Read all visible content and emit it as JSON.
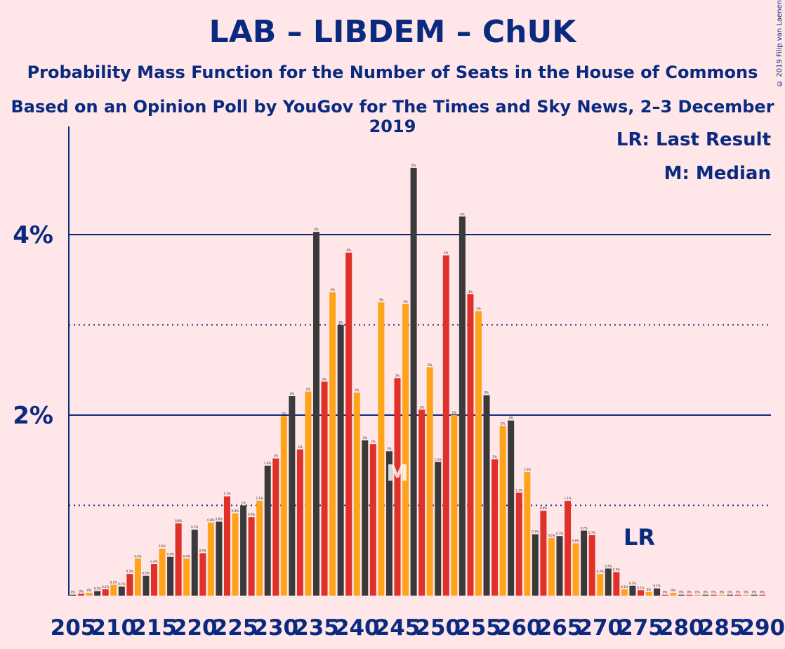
{
  "title": "LAB – LIBDEM – ChUK",
  "subtitle": "Probability Mass Function for the Number of Seats in the House of Commons",
  "source": "Based on an Opinion Poll by YouGov for The Times and Sky News, 2–3 December 2019",
  "legend": {
    "last_result": "LR: Last Result",
    "median": "M: Median"
  },
  "copyright": "© 2019 Filip van Laenen",
  "colors": {
    "background": "#FFE6E9",
    "text": "#0A2A80",
    "dark": "#3A3A3A",
    "red": "#E0302A",
    "orange": "#FFA31A"
  },
  "chart_data": {
    "type": "bar",
    "x_start": 205,
    "x_end": 290,
    "x_tick_labels": [
      "205",
      "210",
      "215",
      "220",
      "225",
      "230",
      "235",
      "240",
      "245",
      "250",
      "255",
      "260",
      "265",
      "270",
      "275",
      "280",
      "285",
      "290"
    ],
    "y_tick_labels": [
      "2%",
      "4%"
    ],
    "ylim": [
      0,
      5
    ],
    "gridlines_solid": [
      2,
      4
    ],
    "gridlines_dotted": [
      1,
      3
    ],
    "median_seat": 245,
    "median_label": "M",
    "last_result_seat": 275,
    "last_result_label": "LR",
    "values": [
      0.01,
      0.02,
      0.03,
      0.05,
      0.07,
      0.12,
      0.1,
      0.24,
      0.41,
      0.22,
      0.35,
      0.52,
      0.43,
      0.8,
      0.41,
      0.73,
      0.47,
      0.81,
      0.82,
      1.1,
      0.91,
      1.0,
      0.87,
      1.05,
      1.44,
      1.52,
      1.99,
      2.21,
      1.62,
      2.26,
      4.03,
      2.37,
      3.36,
      3.0,
      3.8,
      2.25,
      1.72,
      1.68,
      3.25,
      1.6,
      2.41,
      3.23,
      4.74,
      2.06,
      2.53,
      1.48,
      3.77,
      2.0,
      4.2,
      3.34,
      3.15,
      2.22,
      1.51,
      1.88,
      1.94,
      1.14,
      1.37,
      0.68,
      0.94,
      0.64,
      0.66,
      1.05,
      0.58,
      0.72,
      0.67,
      0.24,
      0.3,
      0.26,
      0.07,
      0.11,
      0.06,
      0.04,
      0.08,
      0.01,
      0.03,
      0.01,
      0.01,
      0.01,
      0.01,
      0.01,
      0.01,
      0.01,
      0.01,
      0.01,
      0.01,
      0.01
    ],
    "value_labels": [
      "0%",
      "0%",
      "0%",
      "0.1%",
      "0.1%",
      "0.1%",
      "0.1%",
      "0.2%",
      "0.4%",
      "0.2%",
      "0.4%",
      "0.5%",
      "0.4%",
      "0.8%",
      "0.4%",
      "0.7%",
      "0.5%",
      "0.8%",
      "0.8%",
      "1.1%",
      "0.9%",
      "1%",
      "0.9%",
      "1.1%",
      "1.4%",
      "2%",
      "2%",
      "2%",
      "2%",
      "2%",
      "4%",
      "2%",
      "3%",
      "3%",
      "4%",
      "2%",
      "2%",
      "2%",
      "3%",
      "2%",
      "2%",
      "3%",
      "5%",
      "2%",
      "3%",
      "1.5%",
      "4%",
      "2%",
      "4%",
      "3%",
      "3%",
      "2%",
      "2%",
      "2%",
      "2%",
      "1.1%",
      "1.4%",
      "0.7%",
      "0.9%",
      "0.6%",
      "0.7%",
      "1.1%",
      "0.6%",
      "0.7%",
      "0.7%",
      "0.2%",
      "0.3%",
      "0.3%",
      "0.1%",
      "0.1%",
      "0.1%",
      "0%",
      "0.1%",
      "0%",
      "0%",
      "0%",
      "0%",
      "0%",
      "0%",
      "0%",
      "0%",
      "0%",
      "0%",
      "0%",
      "0%",
      "0%"
    ]
  }
}
